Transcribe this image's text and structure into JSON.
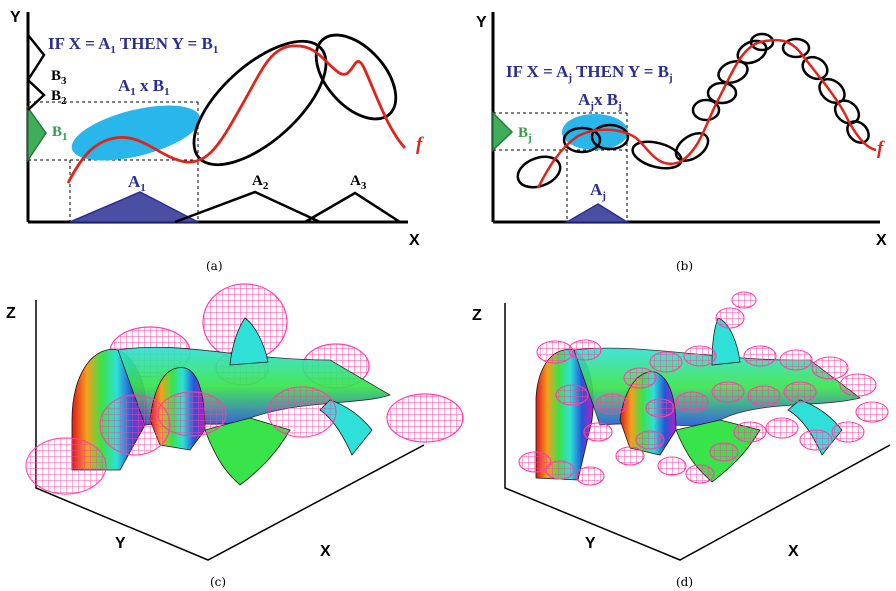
{
  "panel_a": {
    "y_axis": "Y",
    "x_axis": "X",
    "rule_prefix": "IF X = A",
    "rule_sub1": "1",
    "rule_mid": " THEN Y = B",
    "rule_sub2": "1",
    "product_main": "A",
    "product_sub1": "1",
    "product_mid": " x B",
    "product_sub2": "1",
    "b3": "B",
    "b3_sub": "3",
    "b2": "B",
    "b2_sub": "2",
    "b1": "B",
    "b1_sub": "1",
    "a1": "A",
    "a1_sub": "1",
    "a2": "A",
    "a2_sub": "2",
    "a3": "A",
    "a3_sub": "3",
    "f_label": "f",
    "caption": "(a)"
  },
  "panel_b": {
    "y_axis": "Y",
    "x_axis": "X",
    "rule_prefix": "IF X = A",
    "rule_sub1": "j",
    "rule_mid": " THEN Y = B",
    "rule_sub2": "j",
    "product_main": "A",
    "product_sub1": "j",
    "product_mid": "x B",
    "product_sub2": "j",
    "bj": "B",
    "bj_sub": "j",
    "aj": "A",
    "aj_sub": "j",
    "f_label": "f",
    "caption": "(b)"
  },
  "panel_c": {
    "z_axis": "Z",
    "y_axis": "Y",
    "x_axis": "X",
    "caption": "(c)"
  },
  "panel_d": {
    "z_axis": "Z",
    "y_axis": "Y",
    "x_axis": "X",
    "caption": "(d)"
  },
  "colors": {
    "rule_text": "#2b2f8f",
    "curve": "#e0241c",
    "patch": "#29b6ea",
    "membership_fill": "#4a4fa3",
    "consequent_fill": "#3fae5a",
    "ellipsoid_wire": "#ff3fa8"
  }
}
